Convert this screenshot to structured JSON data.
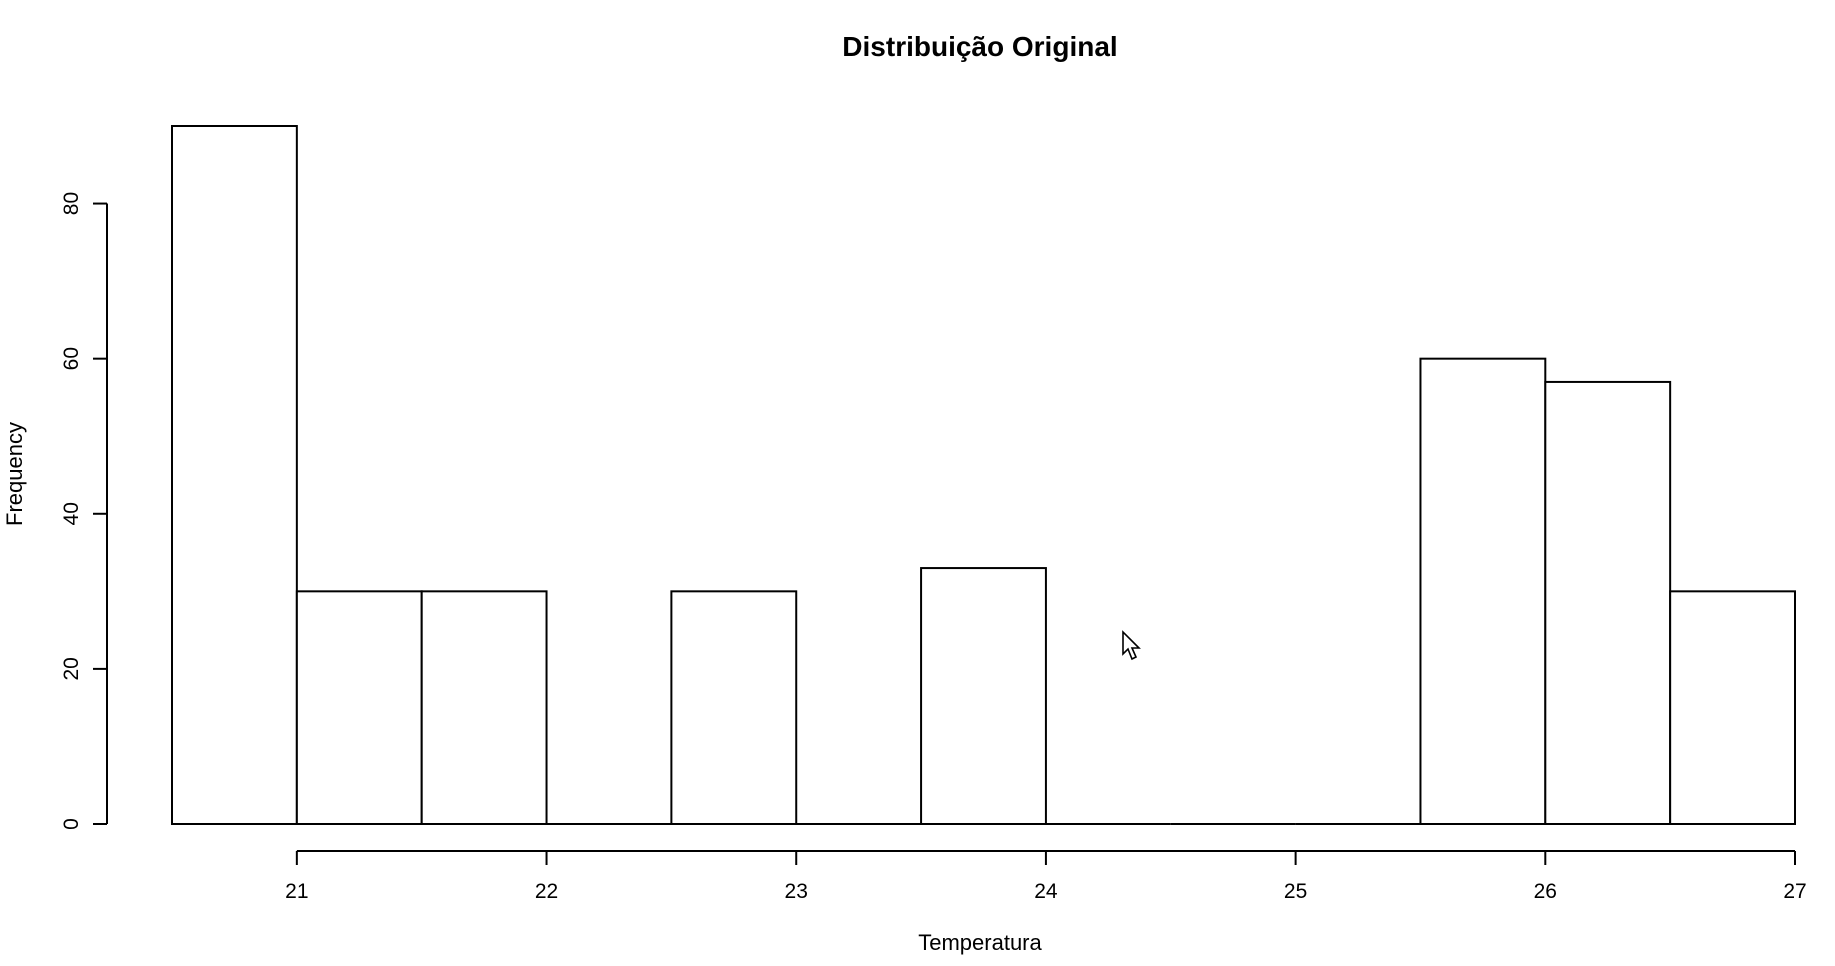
{
  "chart_data": {
    "type": "bar",
    "title": "Distribuição Original",
    "xlabel": "Temperatura",
    "ylabel": "Frequency",
    "bins": [
      {
        "start": 20.5,
        "end": 21.0,
        "value": 90
      },
      {
        "start": 21.0,
        "end": 21.5,
        "value": 30
      },
      {
        "start": 21.5,
        "end": 22.0,
        "value": 30
      },
      {
        "start": 22.0,
        "end": 22.5,
        "value": 0
      },
      {
        "start": 22.5,
        "end": 23.0,
        "value": 30
      },
      {
        "start": 23.0,
        "end": 23.5,
        "value": 0
      },
      {
        "start": 23.5,
        "end": 24.0,
        "value": 33
      },
      {
        "start": 24.0,
        "end": 24.5,
        "value": 0
      },
      {
        "start": 24.5,
        "end": 25.0,
        "value": 0
      },
      {
        "start": 25.0,
        "end": 25.5,
        "value": 0
      },
      {
        "start": 25.5,
        "end": 26.0,
        "value": 60
      },
      {
        "start": 26.0,
        "end": 26.5,
        "value": 57
      },
      {
        "start": 26.5,
        "end": 27.0,
        "value": 30
      }
    ],
    "xlim": [
      20.5,
      27.0
    ],
    "ylim": [
      0,
      90
    ],
    "x_ticks": [
      "21",
      "22",
      "23",
      "24",
      "25",
      "26",
      "27"
    ],
    "y_ticks": [
      "0",
      "20",
      "40",
      "60",
      "80"
    ],
    "grid": false,
    "bar_fill": "#ffffff",
    "bar_stroke": "#000000"
  }
}
